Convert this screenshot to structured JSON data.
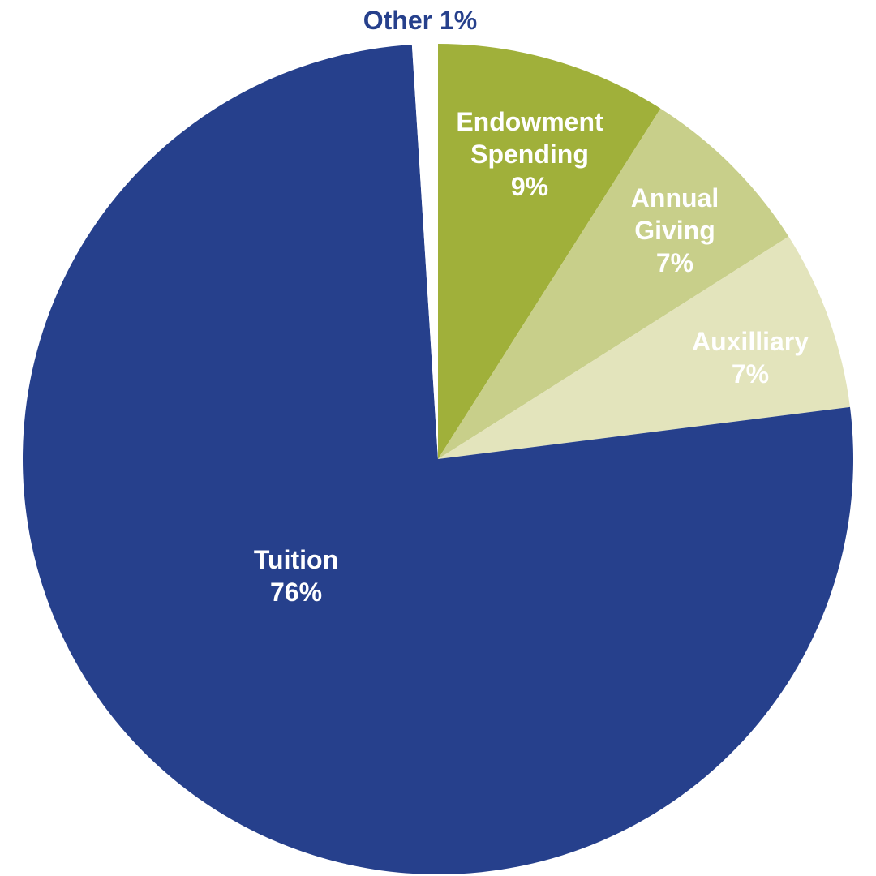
{
  "chart_data": {
    "type": "pie",
    "categories": [
      "Endowment Spending",
      "Annual Giving",
      "Auxilliary",
      "Tuition",
      "Other"
    ],
    "values": [
      9,
      7,
      7,
      76,
      1
    ],
    "value_labels": [
      "9%",
      "7%",
      "7%",
      "76%",
      "1%"
    ],
    "colors": [
      "#a0b03a",
      "#c8cf8a",
      "#e3e4bc",
      "#26408c",
      "#ffffff"
    ]
  }
}
